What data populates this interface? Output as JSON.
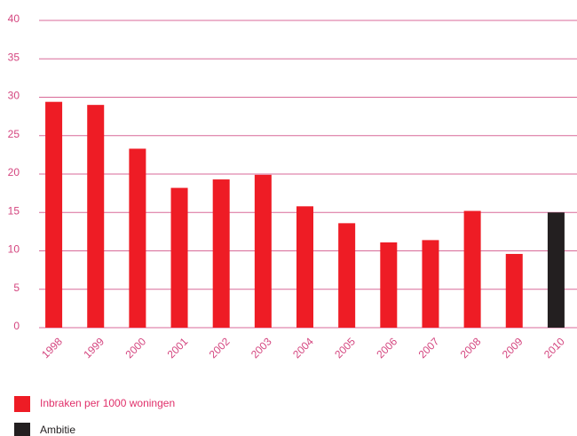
{
  "chart_data": {
    "type": "bar",
    "categories": [
      "1998",
      "1999",
      "2000",
      "2001",
      "2002",
      "2003",
      "2004",
      "2005",
      "2006",
      "2007",
      "2008",
      "2009",
      "2010"
    ],
    "series": [
      {
        "name": "Inbraken per 1000 woningen",
        "color": "#ee1c25",
        "values": [
          29.4,
          29,
          23.3,
          18.2,
          19.3,
          19.9,
          15.8,
          13.6,
          11.1,
          11.4,
          15.2,
          9.6,
          null
        ]
      },
      {
        "name": "Ambitie",
        "color": "#231f20",
        "values": [
          null,
          null,
          null,
          null,
          null,
          null,
          null,
          null,
          null,
          null,
          null,
          null,
          15
        ]
      }
    ],
    "ylim": [
      0,
      40
    ],
    "yticks": [
      0,
      5,
      10,
      15,
      20,
      25,
      30,
      35,
      40
    ],
    "grid": true
  }
}
